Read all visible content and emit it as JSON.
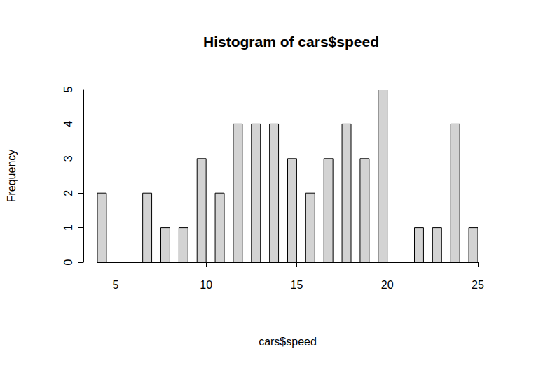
{
  "chart_data": {
    "type": "histogram",
    "title": "Histogram of cars$speed",
    "x_label": "cars$speed",
    "y_label": "Frequency",
    "bins": [
      4,
      4.5,
      5,
      5.5,
      6,
      6.5,
      7,
      7.5,
      8,
      8.5,
      9,
      9.5,
      10,
      10.5,
      11,
      11.5,
      12,
      12.5,
      13,
      13.5,
      14,
      14.5,
      15,
      15.5,
      16,
      16.5,
      17,
      17.5,
      18,
      18.5,
      19,
      19.5,
      20,
      20.5,
      21,
      21.5,
      22,
      22.5,
      23,
      23.5,
      24,
      24.5,
      25
    ],
    "values": [
      2,
      0,
      0,
      0,
      0,
      2,
      0,
      1,
      0,
      1,
      0,
      3,
      0,
      2,
      0,
      4,
      0,
      4,
      0,
      4,
      0,
      3,
      0,
      2,
      0,
      3,
      0,
      4,
      0,
      3,
      0,
      5,
      0,
      0,
      0,
      1,
      0,
      1,
      0,
      4,
      0,
      1
    ],
    "color": "#d3d3d3",
    "xlim": [
      4,
      25
    ],
    "xticks": [
      5,
      10,
      15,
      20,
      25
    ],
    "ylim": [
      0,
      5
    ],
    "yticks": [
      0,
      1,
      2,
      3,
      4,
      5
    ],
    "grid": false
  }
}
